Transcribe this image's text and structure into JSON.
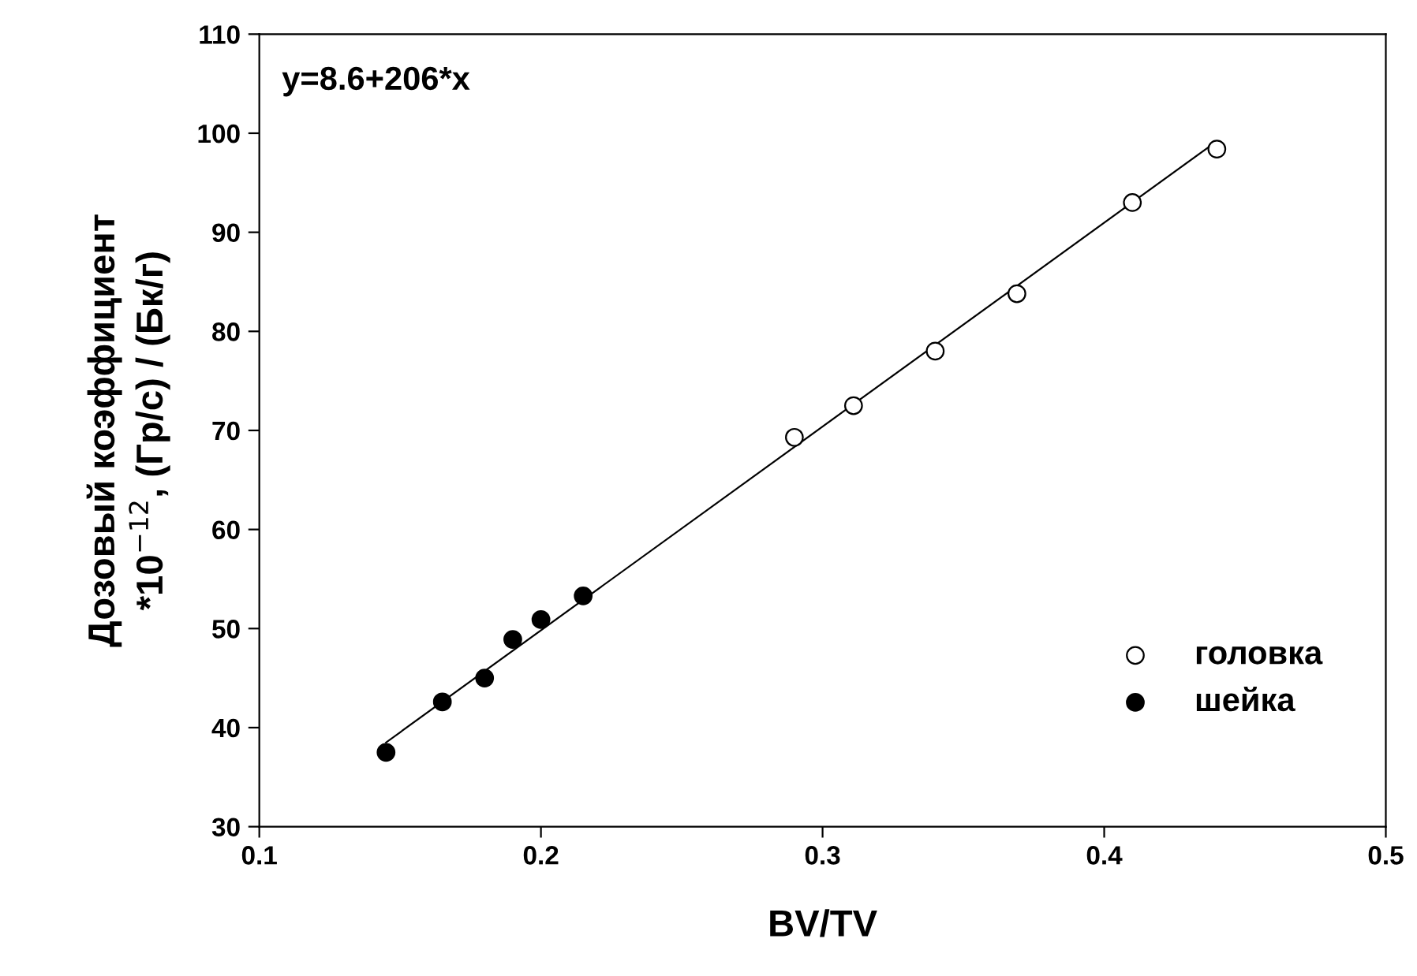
{
  "chart_data": {
    "type": "scatter",
    "xlabel": "BV/TV",
    "ylabel": "Дозовый коэффициент\n*10$^{−12}$, (Гр/с) / (Бк/г)",
    "xlim": [
      0.1,
      0.5
    ],
    "xticks": [
      0.1,
      0.2,
      0.3,
      0.4,
      0.5
    ],
    "ylim": [
      30,
      110
    ],
    "yticks": [
      30,
      40,
      50,
      60,
      70,
      80,
      90,
      100,
      110
    ],
    "grid": false,
    "legend": "bottom right",
    "annotations": [
      "y=8.6+206*x"
    ],
    "series": [
      {
        "name": "головка",
        "marker": "circle",
        "color": "#ffffff",
        "x": [
          0.29,
          0.311,
          0.34,
          0.369,
          0.41,
          0.44
        ],
        "values": [
          69.3,
          72.5,
          78.0,
          83.8,
          93.0,
          98.4
        ]
      },
      {
        "name": "шейка",
        "marker": "circle",
        "color": "#000000",
        "x": [
          0.145,
          0.165,
          0.18,
          0.19,
          0.2,
          0.215
        ],
        "values": [
          37.5,
          42.6,
          45.0,
          48.9,
          50.9,
          53.3
        ]
      },
      {
        "type": "line",
        "marker": "none",
        "color": "#000000",
        "line_style": "solid",
        "x": [
          0.145,
          0.44
        ],
        "values": [
          38.5,
          99.2
        ]
      }
    ]
  }
}
